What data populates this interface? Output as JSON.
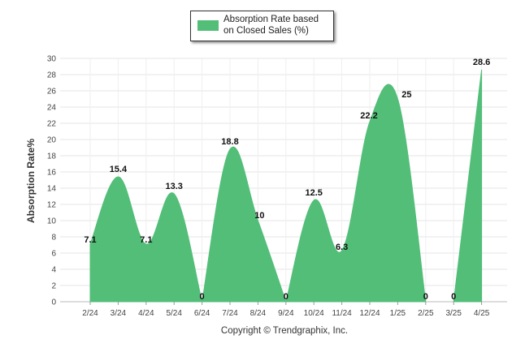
{
  "chart_data": {
    "type": "area",
    "categories": [
      "2/24",
      "3/24",
      "4/24",
      "5/24",
      "6/24",
      "7/24",
      "8/24",
      "9/24",
      "10/24",
      "11/24",
      "12/24",
      "1/25",
      "2/25",
      "3/25",
      "4/25"
    ],
    "series": [
      {
        "name": "Absorption Rate based on Closed Sales (%)",
        "values": [
          7.1,
          15.4,
          7.1,
          13.3,
          0,
          18.8,
          10,
          0,
          12.5,
          6.3,
          22.2,
          25,
          0,
          0,
          28.6
        ],
        "data_labels": [
          "7.1",
          "15.4",
          "7.1",
          "13.3",
          "0",
          "18.8",
          "10",
          "0",
          "12.5",
          "6.3",
          "22.2",
          "25",
          "0",
          "0",
          "28.6"
        ]
      }
    ],
    "ylabel": "Absorption Rate%",
    "xlabel": "",
    "ylim": [
      0,
      30
    ],
    "yticks": [
      0,
      2,
      4,
      6,
      8,
      10,
      12,
      14,
      16,
      18,
      20,
      22,
      24,
      26,
      28,
      30
    ],
    "grid": true,
    "legend": "top-center",
    "color": "#52be78"
  },
  "legend": {
    "label": "Absorption Rate based on Closed Sales (%)"
  },
  "footer": {
    "copyright": "Copyright © Trendgraphix, Inc."
  }
}
